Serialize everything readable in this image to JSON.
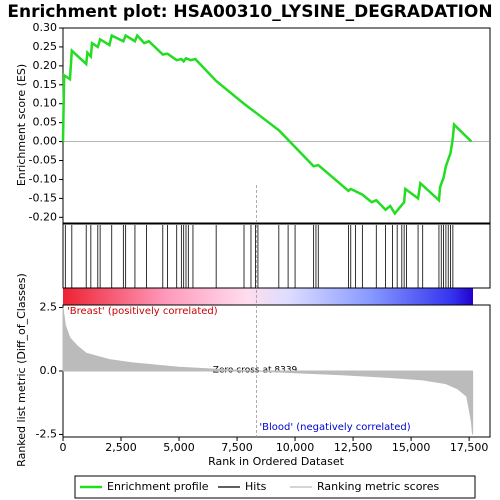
{
  "chart_data": [
    {
      "type": "line",
      "title": "Enrichment plot: HSA00310_LYSINE_DEGRADATION",
      "y_label": "Enrichment score (ES)",
      "color": "#22dd22",
      "x": [
        0,
        50,
        300,
        380,
        1000,
        1050,
        1200,
        1250,
        1500,
        1600,
        2000,
        2100,
        2600,
        2700,
        3100,
        3200,
        3500,
        3700,
        4300,
        4500,
        4900,
        5100,
        5200,
        5300,
        5500,
        5700,
        6600,
        7800,
        8339,
        9300,
        10800,
        11000,
        12300,
        12400,
        12900,
        13300,
        13500,
        13900,
        14100,
        14300,
        14500,
        14700,
        14750,
        15300,
        15400,
        16200,
        16250,
        16400,
        16500,
        16700,
        16800,
        16850,
        17600
      ],
      "values": [
        0.0,
        0.175,
        0.165,
        0.24,
        0.205,
        0.235,
        0.225,
        0.26,
        0.25,
        0.27,
        0.255,
        0.28,
        0.265,
        0.28,
        0.265,
        0.28,
        0.26,
        0.265,
        0.23,
        0.232,
        0.215,
        0.218,
        0.212,
        0.22,
        0.215,
        0.218,
        0.16,
        0.1,
        0.075,
        0.03,
        -0.065,
        -0.062,
        -0.13,
        -0.125,
        -0.14,
        -0.16,
        -0.155,
        -0.18,
        -0.17,
        -0.19,
        -0.175,
        -0.16,
        -0.125,
        -0.15,
        -0.11,
        -0.155,
        -0.12,
        -0.095,
        -0.065,
        -0.03,
        0.01,
        0.045,
        0.0
      ],
      "xlim": [
        0,
        18400
      ],
      "ylim": [
        -0.215,
        0.3
      ],
      "yticks": [
        {
          "value": 0.3,
          "label": "0.30"
        },
        0.25,
        {
          "value": 0.2,
          "label": "0.20"
        },
        0.15,
        {
          "value": 0.1,
          "label": "0.10"
        },
        0.05,
        {
          "value": 0,
          "label": "0.00"
        },
        -0.05,
        {
          "value": -0.1,
          "label": "-0.10"
        },
        -0.15,
        {
          "value": -0.2,
          "label": "-0.20"
        }
      ]
    },
    {
      "type": "rug",
      "color": "#000000",
      "xlim": [
        0,
        18400
      ],
      "x": [
        100,
        380,
        1000,
        1200,
        1500,
        1600,
        2100,
        2600,
        2700,
        3100,
        3600,
        4300,
        4500,
        4900,
        5100,
        5200,
        5300,
        5400,
        5600,
        6600,
        7800,
        8100,
        8300,
        8400,
        9300,
        9700,
        10000,
        10800,
        10900,
        11000,
        12300,
        12400,
        12600,
        12900,
        13500,
        13900,
        14200,
        14400,
        14600,
        14700,
        14800,
        15300,
        15500,
        16200,
        16300,
        16400,
        16500,
        16600,
        16700,
        16800
      ]
    },
    {
      "type": "area",
      "y_label": "Ranked list metric (Diff_of_Classes)",
      "x_label": "Rank in Ordered Dataset",
      "color": "#bbbbbb",
      "x": [
        0,
        100,
        300,
        600,
        1000,
        2000,
        3000,
        5000,
        7000,
        8339,
        10000,
        12000,
        14000,
        15500,
        16500,
        17000,
        17400,
        17600,
        17650
      ],
      "values": [
        2.5,
        1.8,
        1.3,
        1.0,
        0.7,
        0.45,
        0.32,
        0.15,
        0.05,
        0,
        -0.07,
        -0.15,
        -0.25,
        -0.35,
        -0.5,
        -0.7,
        -1.0,
        -2.0,
        -2.5
      ],
      "xlim": [
        0,
        18400
      ],
      "ylim": [
        -2.6,
        2.6
      ],
      "yticks": [
        2.5,
        {
          "value": 0,
          "label": "0.0"
        },
        -2.5
      ],
      "xticks": [
        0,
        {
          "value": 2500,
          "label": "2,500"
        },
        {
          "value": 5000,
          "label": "5,000"
        },
        {
          "value": 7500,
          "label": "7,500"
        },
        {
          "value": 10000,
          "label": "10,000"
        },
        {
          "value": 12500,
          "label": "12,500"
        },
        {
          "value": 15000,
          "label": "15,000"
        },
        {
          "value": 17500,
          "label": "17,500"
        }
      ],
      "zero_cross": 8339,
      "annotations": [
        "'Breast' (positively correlated)",
        "Zero cross at 8339",
        "'Blood' (negatively correlated)"
      ]
    }
  ],
  "legend": [
    {
      "name": "Enrichment profile",
      "color": "#22dd22"
    },
    {
      "name": "Hits",
      "color": "#000000"
    },
    {
      "name": "Ranking metric scores",
      "color": "#bbbbbb"
    }
  ]
}
